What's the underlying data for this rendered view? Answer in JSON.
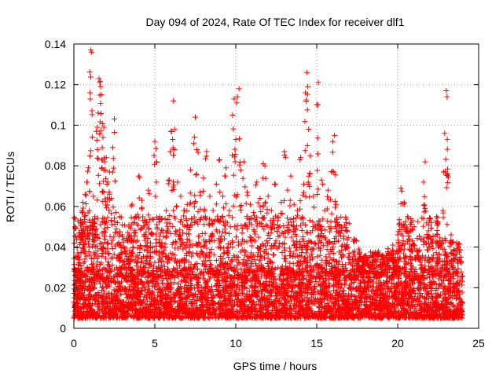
{
  "chart_data": {
    "type": "scatter",
    "title": "Day 094 of 2024, Rate Of TEC Index for receiver dlf1",
    "xlabel": "GPS time / hours",
    "ylabel": "ROTI / TECUs",
    "xlim": [
      0,
      25
    ],
    "ylim": [
      0,
      0.14
    ],
    "x_ticks": [
      0,
      5,
      10,
      15,
      20,
      25
    ],
    "x_tick_labels": [
      "0",
      "5",
      "10",
      "15",
      "20",
      "25"
    ],
    "y_ticks": [
      0,
      0.02,
      0.04,
      0.06,
      0.08,
      0.1,
      0.12,
      0.14
    ],
    "y_tick_labels": [
      "0",
      "0.02",
      "0.04",
      "0.06",
      "0.08",
      "0.1",
      "0.12",
      "0.14"
    ],
    "grid": true,
    "marker": "+",
    "color": "#ff0000",
    "series": [
      {
        "name": "ROTI",
        "points": [
          [
            0.05,
            0.012
          ],
          [
            0.1,
            0.018
          ],
          [
            0.15,
            0.022
          ],
          [
            0.2,
            0.015
          ],
          [
            0.25,
            0.028
          ],
          [
            0.3,
            0.035
          ],
          [
            0.35,
            0.024
          ],
          [
            0.4,
            0.045
          ],
          [
            0.45,
            0.052
          ],
          [
            0.5,
            0.058
          ],
          [
            0.55,
            0.062
          ],
          [
            0.6,
            0.041
          ],
          [
            0.65,
            0.055
          ],
          [
            0.7,
            0.066
          ],
          [
            0.8,
            0.072
          ],
          [
            0.85,
            0.048
          ],
          [
            0.9,
            0.079
          ],
          [
            0.95,
            0.058
          ],
          [
            1.0,
            0.116
          ],
          [
            1.05,
            0.137
          ],
          [
            1.1,
            0.136
          ],
          [
            1.15,
            0.052
          ],
          [
            1.2,
            0.065
          ],
          [
            1.3,
            0.055
          ],
          [
            1.4,
            0.049
          ],
          [
            1.45,
            0.099
          ],
          [
            1.5,
            0.106
          ],
          [
            1.55,
            0.123
          ],
          [
            1.6,
            0.121
          ],
          [
            1.65,
            0.119
          ],
          [
            1.7,
            0.115
          ],
          [
            1.75,
            0.089
          ],
          [
            1.8,
            0.094
          ],
          [
            1.85,
            0.099
          ],
          [
            1.9,
            0.082
          ],
          [
            1.95,
            0.078
          ],
          [
            2.0,
            0.084
          ],
          [
            2.1,
            0.072
          ],
          [
            2.2,
            0.077
          ],
          [
            2.3,
            0.064
          ],
          [
            2.4,
            0.089
          ],
          [
            2.5,
            0.103
          ],
          [
            2.6,
            0.057
          ],
          [
            2.7,
            0.052
          ],
          [
            2.8,
            0.035
          ],
          [
            2.9,
            0.041
          ],
          [
            3.0,
            0.045
          ],
          [
            3.2,
            0.038
          ],
          [
            3.4,
            0.051
          ],
          [
            3.6,
            0.061
          ],
          [
            3.8,
            0.055
          ],
          [
            4.0,
            0.075
          ],
          [
            4.2,
            0.063
          ],
          [
            4.4,
            0.052
          ],
          [
            4.6,
            0.068
          ],
          [
            4.8,
            0.047
          ],
          [
            5.0,
            0.092
          ],
          [
            5.1,
            0.082
          ],
          [
            5.3,
            0.055
          ],
          [
            5.5,
            0.048
          ],
          [
            5.7,
            0.058
          ],
          [
            5.9,
            0.073
          ],
          [
            6.0,
            0.097
          ],
          [
            6.1,
            0.093
          ],
          [
            6.15,
            0.112
          ],
          [
            6.2,
            0.088
          ],
          [
            6.4,
            0.072
          ],
          [
            6.6,
            0.065
          ],
          [
            6.8,
            0.058
          ],
          [
            7.0,
            0.061
          ],
          [
            7.2,
            0.078
          ],
          [
            7.4,
            0.091
          ],
          [
            7.5,
            0.104
          ],
          [
            7.6,
            0.088
          ],
          [
            7.8,
            0.067
          ],
          [
            8.0,
            0.074
          ],
          [
            8.2,
            0.087
          ],
          [
            8.4,
            0.065
          ],
          [
            8.6,
            0.058
          ],
          [
            8.8,
            0.071
          ],
          [
            9.0,
            0.083
          ],
          [
            9.2,
            0.065
          ],
          [
            9.4,
            0.079
          ],
          [
            9.6,
            0.058
          ],
          [
            9.8,
            0.105
          ],
          [
            9.9,
            0.113
          ],
          [
            10.0,
            0.093
          ],
          [
            10.1,
            0.114
          ],
          [
            10.2,
            0.118
          ],
          [
            10.3,
            0.078
          ],
          [
            10.5,
            0.082
          ],
          [
            10.7,
            0.067
          ],
          [
            10.9,
            0.061
          ],
          [
            11.1,
            0.057
          ],
          [
            11.3,
            0.072
          ],
          [
            11.5,
            0.064
          ],
          [
            11.7,
            0.081
          ],
          [
            11.8,
            0.08
          ],
          [
            12.0,
            0.065
          ],
          [
            12.2,
            0.058
          ],
          [
            12.4,
            0.071
          ],
          [
            12.6,
            0.053
          ],
          [
            12.8,
            0.062
          ],
          [
            13.0,
            0.087
          ],
          [
            13.2,
            0.068
          ],
          [
            13.4,
            0.075
          ],
          [
            13.6,
            0.061
          ],
          [
            13.8,
            0.058
          ],
          [
            14.0,
            0.084
          ],
          [
            14.2,
            0.071
          ],
          [
            14.3,
            0.116
          ],
          [
            14.4,
            0.126
          ],
          [
            14.45,
            0.119
          ],
          [
            14.5,
            0.098
          ],
          [
            14.6,
            0.085
          ],
          [
            14.8,
            0.065
          ],
          [
            15.0,
            0.11
          ],
          [
            15.1,
            0.121
          ],
          [
            15.3,
            0.073
          ],
          [
            15.5,
            0.058
          ],
          [
            15.7,
            0.068
          ],
          [
            15.9,
            0.077
          ],
          [
            16.0,
            0.092
          ],
          [
            16.1,
            0.095
          ],
          [
            16.2,
            0.061
          ],
          [
            16.4,
            0.048
          ],
          [
            16.6,
            0.041
          ],
          [
            16.8,
            0.052
          ],
          [
            17.0,
            0.037
          ],
          [
            17.3,
            0.044
          ],
          [
            17.6,
            0.039
          ],
          [
            17.9,
            0.035
          ],
          [
            18.2,
            0.031
          ],
          [
            18.5,
            0.036
          ],
          [
            18.8,
            0.038
          ],
          [
            19.1,
            0.032
          ],
          [
            19.4,
            0.037
          ],
          [
            19.7,
            0.041
          ],
          [
            20.0,
            0.046
          ],
          [
            20.2,
            0.069
          ],
          [
            20.4,
            0.062
          ],
          [
            20.6,
            0.055
          ],
          [
            20.8,
            0.048
          ],
          [
            21.0,
            0.041
          ],
          [
            21.3,
            0.038
          ],
          [
            21.6,
            0.072
          ],
          [
            21.7,
            0.082
          ],
          [
            21.9,
            0.048
          ],
          [
            22.2,
            0.036
          ],
          [
            22.4,
            0.055
          ],
          [
            22.6,
            0.043
          ],
          [
            22.8,
            0.058
          ],
          [
            22.9,
            0.096
          ],
          [
            23.0,
            0.117
          ],
          [
            23.05,
            0.114
          ],
          [
            23.1,
            0.076
          ],
          [
            23.3,
            0.046
          ],
          [
            23.5,
            0.038
          ],
          [
            23.7,
            0.041
          ],
          [
            23.9,
            0.035
          ]
        ]
      }
    ],
    "background_band": {
      "description": "dense cluster of points between 0.005 and 0.03 across the full 0-24 hour range",
      "y_range": [
        0.005,
        0.03
      ],
      "x_range": [
        0,
        24
      ]
    }
  }
}
